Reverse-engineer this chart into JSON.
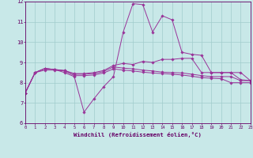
{
  "xlabel": "Windchill (Refroidissement éolien,°C)",
  "xlim": [
    0,
    23
  ],
  "ylim": [
    6,
    12
  ],
  "yticks": [
    6,
    7,
    8,
    9,
    10,
    11,
    12
  ],
  "xticks": [
    0,
    1,
    2,
    3,
    4,
    5,
    6,
    7,
    8,
    9,
    10,
    11,
    12,
    13,
    14,
    15,
    16,
    17,
    18,
    19,
    20,
    21,
    22,
    23
  ],
  "bg_color": "#c8e8e8",
  "grid_color": "#a0cccc",
  "line_color": "#993399",
  "series1": [
    7.5,
    8.5,
    8.7,
    8.65,
    8.5,
    8.3,
    6.55,
    7.2,
    7.8,
    8.3,
    10.5,
    11.9,
    11.85,
    10.5,
    11.3,
    11.1,
    9.5,
    9.4,
    9.35,
    8.5,
    8.5,
    8.5,
    8.15,
    8.1
  ],
  "series2": [
    7.5,
    8.5,
    8.7,
    8.65,
    8.6,
    8.45,
    8.45,
    8.5,
    8.6,
    8.85,
    8.95,
    8.9,
    9.05,
    9.0,
    9.15,
    9.15,
    9.2,
    9.2,
    8.5,
    8.5,
    8.5,
    8.5,
    8.5,
    8.1
  ],
  "series3": [
    7.5,
    8.5,
    8.7,
    8.65,
    8.6,
    8.42,
    8.42,
    8.45,
    8.55,
    8.78,
    8.72,
    8.68,
    8.62,
    8.58,
    8.52,
    8.5,
    8.48,
    8.42,
    8.35,
    8.3,
    8.3,
    8.3,
    8.1,
    8.1
  ],
  "series4": [
    7.5,
    8.5,
    8.62,
    8.62,
    8.58,
    8.35,
    8.35,
    8.38,
    8.48,
    8.68,
    8.62,
    8.58,
    8.52,
    8.48,
    8.45,
    8.42,
    8.38,
    8.32,
    8.25,
    8.22,
    8.2,
    8.0,
    8.0,
    8.0
  ]
}
